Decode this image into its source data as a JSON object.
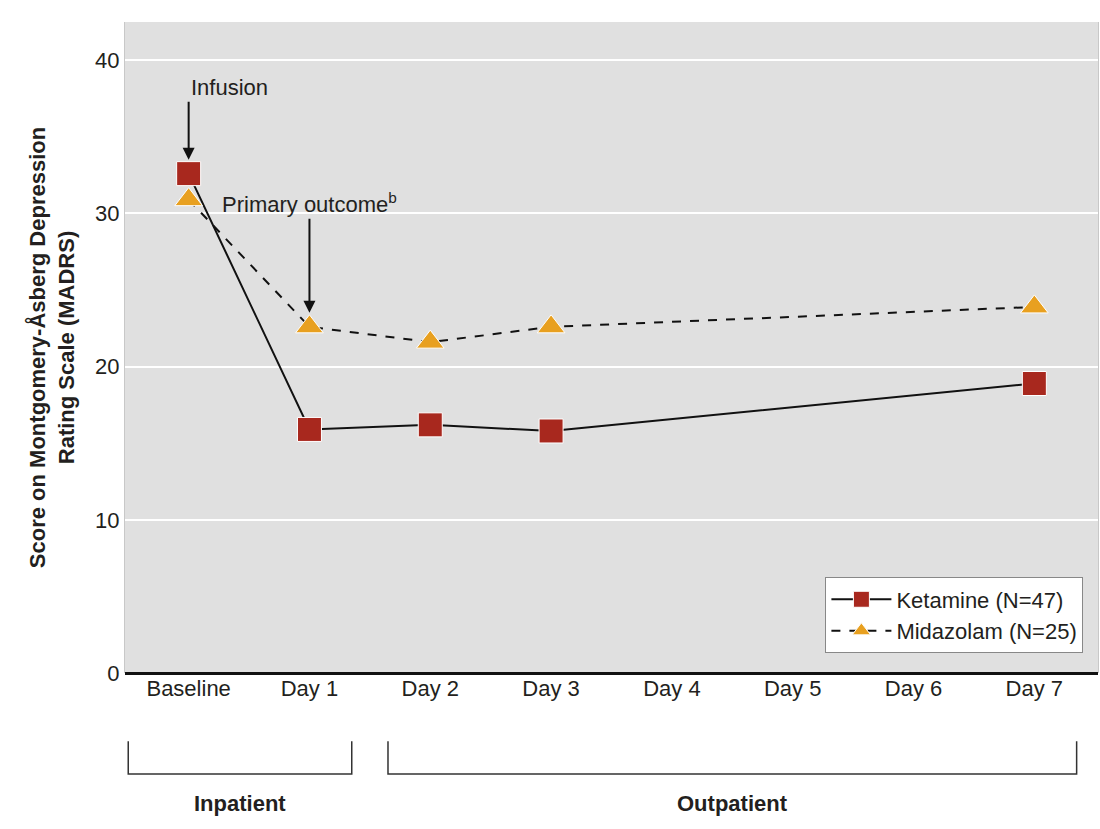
{
  "chart_data": {
    "type": "line",
    "ylabel": [
      "Score on Montgomery-Åsberg Depression",
      "Rating Scale (MADRS)"
    ],
    "categories": [
      "Baseline",
      "Day 1",
      "Day 2",
      "Day 3",
      "Day 4",
      "Day 5",
      "Day 6",
      "Day 7"
    ],
    "series": [
      {
        "name": "Ketamine (N=47)",
        "color": "#a8281e",
        "marker": "square",
        "line_style": "solid",
        "values": [
          32.6,
          15.9,
          16.2,
          15.8,
          null,
          null,
          null,
          18.9
        ]
      },
      {
        "name": "Midazolam (N=25)",
        "color": "#e8a020",
        "marker": "triangle-up",
        "line_style": "dashed",
        "values": [
          30.9,
          22.6,
          21.6,
          22.6,
          null,
          null,
          null,
          23.9
        ]
      }
    ],
    "ylim": [
      0,
      42.5
    ],
    "yticks": [
      0,
      10,
      20,
      30,
      40
    ],
    "grid": true,
    "legend": "bottom right",
    "annotations": [
      {
        "text": "Infusion",
        "x": "Baseline"
      },
      {
        "text": "Primary outcome",
        "superscript": "b",
        "x": "Day 1"
      }
    ],
    "groups": [
      {
        "label": "Inpatient",
        "from": "Baseline",
        "to": "Day 1"
      },
      {
        "label": "Outpatient",
        "from": "Day 2",
        "to": "Day 7"
      }
    ]
  }
}
